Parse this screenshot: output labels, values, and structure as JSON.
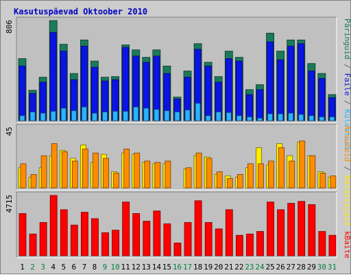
{
  "chart_data": {
    "type": "bar",
    "title": "Kasutuspäevad Oktoober 2010",
    "categories": [
      "1",
      "2",
      "3",
      "4",
      "5",
      "6",
      "7",
      "8",
      "9",
      "10",
      "11",
      "12",
      "13",
      "14",
      "15",
      "16",
      "17",
      "18",
      "19",
      "20",
      "21",
      "22",
      "23",
      "24",
      "25",
      "26",
      "27",
      "28",
      "29",
      "30",
      "31"
    ],
    "weekend_days": [
      "2",
      "3",
      "9",
      "10",
      "16",
      "17",
      "23",
      "24",
      "30",
      "31"
    ],
    "panels": [
      {
        "max_label": "806",
        "ylim": [
          0,
          806
        ],
        "series": [
          {
            "name": "Päringuid",
            "color": "#1a7a5a",
            "values": [
              500,
              245,
              350,
              806,
              615,
              380,
              650,
              480,
              350,
              355,
              610,
              570,
              510,
              570,
              440,
              190,
              400,
              620,
              470,
              355,
              560,
              510,
              250,
              290,
              705,
              560,
              650,
              650,
              460,
              380,
              210
            ]
          },
          {
            "name": "Faile",
            "color": "#0a14e6",
            "values": [
              440,
              220,
              310,
              710,
              560,
              330,
              600,
              430,
              320,
              330,
              590,
              520,
              470,
              520,
              380,
              175,
              350,
              575,
              440,
              310,
              500,
              480,
              210,
              250,
              635,
              490,
              600,
              620,
              400,
              340,
              185
            ]
          },
          {
            "name": "Külastusi",
            "color": "#2ab4ff",
            "values": [
              40,
              70,
              60,
              75,
              100,
              80,
              110,
              60,
              70,
              75,
              75,
              110,
              100,
              90,
              80,
              70,
              85,
              140,
              40,
              70,
              65,
              40,
              30,
              20,
              55,
              55,
              60,
              50,
              40,
              30,
              30
            ]
          }
        ]
      },
      {
        "max_label": "45",
        "ylim": [
          0,
          45
        ],
        "series": [
          {
            "name": "Külastajaid",
            "color": "#ffea00",
            "values": [
              15,
              8,
              15,
              24,
              28,
              22,
              32,
              19,
              25,
              12,
              26,
              25,
              19,
              18,
              18,
              0,
              14,
              24,
              23,
              10,
              9,
              8,
              15,
              30,
              17,
              33,
              24,
              34,
              24,
              12,
              8
            ]
          },
          {
            "name": "Arvuteid",
            "color": "#ff8c00",
            "values": [
              18,
              10,
              24,
              33,
              27,
              20,
              29,
              26,
              22,
              11,
              29,
              26,
              20,
              19,
              20,
              0,
              15,
              26,
              22,
              12,
              7,
              10,
              18,
              18,
              20,
              30,
              20,
              35,
              24,
              11,
              9
            ]
          }
        ]
      },
      {
        "max_label": "4715",
        "ylim": [
          0,
          4715
        ],
        "series": [
          {
            "name": "kBaite",
            "color": "#ff0000",
            "values": [
              3300,
              1700,
              2600,
              4715,
              3600,
              2400,
              3400,
              2900,
              1800,
              2000,
              4200,
              3300,
              2700,
              3500,
              2500,
              1000,
              2600,
              4300,
              2600,
              2100,
              3600,
              1600,
              1700,
              1900,
              4200,
              3600,
              4100,
              4250,
              4000,
              1900,
              1600
            ]
          }
        ]
      }
    ],
    "right_labels": {
      "top": [
        {
          "text": "Päringuid",
          "color": "#1a7a5a"
        },
        {
          "text": " / ",
          "color": "#666666"
        },
        {
          "text": "Faile",
          "color": "#0a14e6"
        },
        {
          "text": " / ",
          "color": "#666666"
        },
        {
          "text": "Külastusi",
          "color": "#2ab4ff"
        }
      ],
      "middle": [
        {
          "text": "Arvuteid",
          "color": "#ff8c00"
        },
        {
          "text": " / ",
          "color": "#666666"
        },
        {
          "text": "Külastajaid",
          "color": "#ffea00"
        }
      ],
      "bottom": [
        {
          "text": "kBaite",
          "color": "#ff0000"
        }
      ]
    },
    "colors": {
      "weekday_label": "#000000",
      "weekend_label": "#008040",
      "title": "#0000c0"
    }
  }
}
